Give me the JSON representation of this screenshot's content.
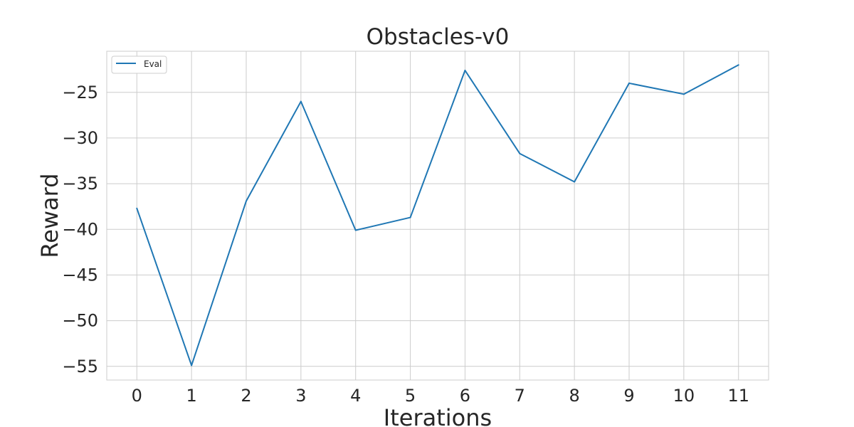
{
  "chart_data": {
    "type": "line",
    "title": "Obstacles-v0",
    "xlabel": "Iterations",
    "ylabel": "Reward",
    "x": [
      0,
      1,
      2,
      3,
      4,
      5,
      6,
      7,
      8,
      9,
      10,
      11
    ],
    "series": [
      {
        "name": "Eval",
        "color": "#1f77b4",
        "values": [
          -37.7,
          -54.9,
          -36.9,
          -26.0,
          -40.1,
          -38.7,
          -22.6,
          -31.7,
          -34.8,
          -24.0,
          -25.2,
          -22.0
        ]
      }
    ],
    "xlim": [
      -0.55,
      11.55
    ],
    "ylim": [
      -56.5,
      -20.5
    ],
    "xticks": [
      "0",
      "1",
      "2",
      "3",
      "4",
      "5",
      "6",
      "7",
      "8",
      "9",
      "10",
      "11"
    ],
    "yticks": [
      {
        "value": -25,
        "label": "−25"
      },
      {
        "value": -30,
        "label": "−30"
      },
      {
        "value": -35,
        "label": "−35"
      },
      {
        "value": -40,
        "label": "−40"
      },
      {
        "value": -45,
        "label": "−45"
      },
      {
        "value": -50,
        "label": "−50"
      },
      {
        "value": -55,
        "label": "−55"
      }
    ],
    "grid": true,
    "legend_position": "upper-left",
    "grid_color": "#cccccc",
    "frame_color": "#cccccc"
  }
}
